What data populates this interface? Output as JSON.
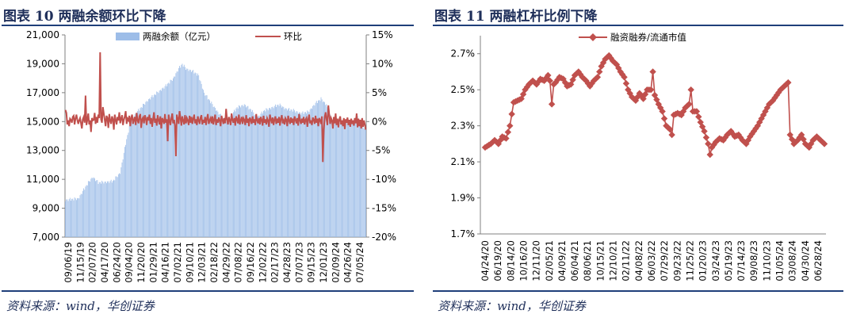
{
  "left": {
    "title": "图表 10  两融余额环比下降",
    "source": "资料来源：wind，华创证券",
    "legend": {
      "bar": "两融余额（亿元）",
      "line": "环比"
    },
    "colors": {
      "bar": "#9dbde8",
      "line": "#c0504d"
    },
    "chart_data": {
      "type": "bar+line",
      "y_left": {
        "min": 7000,
        "max": 21000,
        "ticks": [
          "7,000",
          "9,000",
          "11,000",
          "13,000",
          "15,000",
          "17,000",
          "19,000",
          "21,000"
        ]
      },
      "y_right": {
        "min": -20,
        "max": 15,
        "ticks": [
          "-20%",
          "-15%",
          "-10%",
          "-5%",
          "0%",
          "5%",
          "10%",
          "15%"
        ]
      },
      "x_labels": [
        "09/06/19",
        "11/15/19",
        "02/07/20",
        "04/17/20",
        "06/24/20",
        "09/04/20",
        "11/20/20",
        "01/29/21",
        "04/16/21",
        "07/02/21",
        "09/10/21",
        "12/03/21",
        "02/18/22",
        "04/29/22",
        "07/08/22",
        "09/16/22",
        "12/02/22",
        "02/17/23",
        "04/28/23",
        "07/07/23",
        "09/15/23",
        "12/01/23",
        "02/09/24",
        "04/26/24",
        "07/05/24"
      ],
      "balance_anchors": [
        [
          0,
          9600
        ],
        [
          14,
          9700
        ],
        [
          17,
          10000
        ],
        [
          25,
          10800
        ],
        [
          30,
          11200
        ],
        [
          36,
          10800
        ],
        [
          52,
          10900
        ],
        [
          60,
          11500
        ],
        [
          66,
          13500
        ],
        [
          72,
          15200
        ],
        [
          80,
          15800
        ],
        [
          90,
          16500
        ],
        [
          100,
          17000
        ],
        [
          110,
          17500
        ],
        [
          118,
          18000
        ],
        [
          124,
          18700
        ],
        [
          128,
          19000
        ],
        [
          132,
          18700
        ],
        [
          140,
          18500
        ],
        [
          146,
          18200
        ],
        [
          152,
          17000
        ],
        [
          160,
          16300
        ],
        [
          168,
          15600
        ],
        [
          176,
          15000
        ],
        [
          180,
          15300
        ],
        [
          188,
          16000
        ],
        [
          196,
          16200
        ],
        [
          204,
          15800
        ],
        [
          210,
          15300
        ],
        [
          218,
          15800
        ],
        [
          226,
          16000
        ],
        [
          234,
          16200
        ],
        [
          242,
          15900
        ],
        [
          250,
          15800
        ],
        [
          258,
          15600
        ],
        [
          266,
          15700
        ],
        [
          274,
          16300
        ],
        [
          280,
          16600
        ],
        [
          286,
          16200
        ],
        [
          292,
          15000
        ],
        [
          300,
          14900
        ],
        [
          308,
          15000
        ],
        [
          314,
          14900
        ],
        [
          320,
          15300
        ],
        [
          325,
          14600
        ]
      ],
      "change_pct": [
        2,
        1.5,
        -0.5,
        0.2,
        -0.8,
        0.5,
        0.3,
        -0.2,
        0.8,
        1,
        -0.5,
        0.5,
        1.2,
        0.3,
        -0.4,
        0.2,
        0.6,
        -0.3,
        -1.2,
        0.4,
        0.8,
        -0.2,
        4.5,
        -0.6,
        0.3,
        1.4,
        -0.5,
        0.2,
        -1.8,
        0.6,
        0.2,
        0.3,
        1.5,
        -0.4,
        0.8,
        -0.2,
        1.2,
        0.6,
        12,
        0.4,
        -0.2,
        2.5,
        1.4,
        0.3,
        -0.8,
        1,
        0.6,
        -1.1,
        1.3,
        0.2,
        -0.4,
        0.9,
        0.4,
        -1.4,
        1.2,
        0.3,
        -0.5,
        0.8,
        0.2,
        1.6,
        -0.3,
        0.5,
        1.1,
        -0.6,
        0.3,
        0.9,
        1.8,
        -0.4,
        0.5,
        0.2,
        1,
        -0.8,
        0.6,
        1.2,
        -0.4,
        0.3,
        0.8,
        -0.6,
        1.5,
        0.2,
        -0.3,
        0.9,
        1.3,
        -1.1,
        0.4,
        0.7,
        -0.3,
        1.1,
        0.5,
        -0.6,
        0.8,
        0.2,
        1.2,
        -0.4,
        0.6,
        -0.9,
        0.4,
        1.6,
        -0.2,
        0.5,
        -0.7,
        1.1,
        0.3,
        -0.5,
        0.9,
        -1.2,
        0.6,
        0.2,
        -0.4,
        1.3,
        -0.2,
        0.4,
        -3.4,
        1.2,
        0.2,
        -0.6,
        0.5,
        1.4,
        -0.3,
        0.3,
        -0.8,
        -6,
        1.2,
        0.5,
        -0.4,
        1.8,
        0.6,
        -0.7,
        0.9,
        0.2,
        -0.5,
        1.1,
        -0.3,
        0.6,
        0.2,
        -0.6,
        1,
        -0.2,
        0.8,
        -0.4,
        0.5,
        1.2,
        -0.3,
        0.4,
        -0.6,
        0.9,
        0.2,
        -0.4,
        0.7,
        1.1,
        -0.5,
        0.3,
        -0.2,
        0.8,
        -0.6,
        0.5,
        1.3,
        -0.4,
        0.2,
        0.6,
        -0.3,
        0.9,
        -0.5,
        0.3,
        1.2,
        -0.6,
        0.4,
        -0.2,
        0.7,
        0.2,
        -0.8,
        1,
        0.3,
        -0.4,
        0.6,
        -0.3,
        2.2,
        0.4,
        -0.5,
        0.8,
        0.2,
        -0.6,
        1.4,
        0.3,
        -0.2,
        0.6,
        -0.7,
        0.9,
        0.4,
        -0.3,
        1.2,
        -0.5,
        0.2,
        0.8,
        -0.4,
        0.6,
        0.3,
        -0.6,
        1.1,
        -0.2,
        0.5,
        -0.8,
        0.7,
        0.3,
        -0.4,
        0.9,
        -0.2,
        0.4,
        -0.6,
        1.3,
        0.2,
        -0.3,
        0.6,
        -0.5,
        0.8,
        0.3,
        -0.7,
        1,
        -0.2,
        0.4,
        -0.5,
        0.6,
        0.2,
        -0.9,
        1.2,
        0.4,
        -0.3,
        0.7,
        -0.6,
        0.3,
        0.9,
        -0.4,
        0.5,
        -0.2,
        0.8,
        -0.7,
        0.4,
        1.1,
        -0.3,
        0.2,
        -0.5,
        0.6,
        0.3,
        -0.8,
        1,
        0.2,
        -0.4,
        0.7,
        -0.2,
        0.5,
        -0.6,
        0.9,
        0.3,
        -0.3,
        0.6,
        -0.7,
        1.3,
        0.2,
        -0.4,
        0.5,
        -0.2,
        0.8,
        -0.5,
        0.3,
        0.6,
        -0.9,
        0.4,
        1.2,
        -0.3,
        0.2,
        -0.6,
        0.7,
        0.3,
        -0.4,
        1,
        -0.2,
        0.5,
        -0.8,
        0.6,
        0.2,
        -0.4,
        0.9,
        -7,
        -1.5,
        0.8,
        1.6,
        0.4,
        -0.6,
        2.8,
        1.2,
        -0.4,
        0.6,
        0.2,
        -1.2,
        0.8,
        -0.3,
        1.4,
        -0.6,
        0.5,
        -1,
        0.3,
        0.9,
        -0.5,
        0.2,
        -0.8,
        0.6,
        -1.3,
        0.4,
        -0.2,
        0.7,
        -0.6,
        0.3,
        -0.9,
        0.5,
        -0.4,
        0.2,
        -0.7,
        0.6,
        -0.3,
        1.4,
        -1,
        0.5,
        -0.8,
        0.3,
        -1.2,
        0.6,
        -0.9,
        0.2,
        -0.5,
        -1.4
      ]
    }
  },
  "right": {
    "title": "图表 11  两融杠杆比例下降",
    "source": "资料来源：wind，华创证券",
    "legend": {
      "line": "融资融券/流通市值"
    },
    "colors": {
      "line": "#c0504d"
    },
    "chart_data": {
      "type": "line",
      "y": {
        "min": 1.7,
        "max": 2.8,
        "ticks": [
          "1.7%",
          "1.9%",
          "2.1%",
          "2.3%",
          "2.5%",
          "2.7%"
        ]
      },
      "x_labels": [
        "04/24/20",
        "06/19/20",
        "08/14/20",
        "10/16/20",
        "12/11/20",
        "02/05/21",
        "04/09/21",
        "06/04/21",
        "08/06/21",
        "10/15/21",
        "12/10/21",
        "02/11/22",
        "04/08/22",
        "06/03/22",
        "07/29/22",
        "09/23/22",
        "11/25/22",
        "01/20/23",
        "03/24/23",
        "05/19/23",
        "07/14/23",
        "09/08/23",
        "11/10/23",
        "01/05/24",
        "03/08/24",
        "04/30/24",
        "06/28/24"
      ],
      "ratio_anchors": [
        [
          0,
          2.18
        ],
        [
          3,
          2.2
        ],
        [
          5,
          2.22
        ],
        [
          7,
          2.2
        ],
        [
          9,
          2.24
        ],
        [
          11,
          2.23
        ],
        [
          13,
          2.3
        ],
        [
          15,
          2.43
        ],
        [
          17,
          2.44
        ],
        [
          19,
          2.45
        ],
        [
          21,
          2.5
        ],
        [
          23,
          2.53
        ],
        [
          25,
          2.55
        ],
        [
          27,
          2.53
        ],
        [
          29,
          2.56
        ],
        [
          31,
          2.55
        ],
        [
          33,
          2.58
        ],
        [
          35,
          2.52
        ],
        [
          37,
          2.54
        ],
        [
          39,
          2.57
        ],
        [
          41,
          2.56
        ],
        [
          43,
          2.52
        ],
        [
          45,
          2.53
        ],
        [
          47,
          2.58
        ],
        [
          49,
          2.6
        ],
        [
          51,
          2.57
        ],
        [
          53,
          2.55
        ],
        [
          55,
          2.52
        ],
        [
          57,
          2.55
        ],
        [
          59,
          2.57
        ],
        [
          61,
          2.63
        ],
        [
          63,
          2.67
        ],
        [
          65,
          2.69
        ],
        [
          67,
          2.66
        ],
        [
          69,
          2.64
        ],
        [
          71,
          2.6
        ],
        [
          73,
          2.57
        ],
        [
          75,
          2.5
        ],
        [
          77,
          2.46
        ],
        [
          79,
          2.44
        ],
        [
          81,
          2.48
        ],
        [
          83,
          2.45
        ],
        [
          85,
          2.5
        ],
        [
          87,
          2.5
        ],
        [
          89,
          2.47
        ],
        [
          91,
          2.42
        ],
        [
          93,
          2.38
        ],
        [
          95,
          2.3
        ],
        [
          97,
          2.28
        ],
        [
          99,
          2.36
        ],
        [
          101,
          2.37
        ],
        [
          103,
          2.36
        ],
        [
          105,
          2.4
        ],
        [
          107,
          2.42
        ],
        [
          109,
          2.38
        ],
        [
          111,
          2.38
        ],
        [
          113,
          2.32
        ],
        [
          115,
          2.27
        ],
        [
          117,
          2.2
        ],
        [
          119,
          2.18
        ],
        [
          121,
          2.21
        ],
        [
          123,
          2.23
        ],
        [
          125,
          2.22
        ],
        [
          127,
          2.25
        ],
        [
          129,
          2.27
        ],
        [
          131,
          2.24
        ],
        [
          133,
          2.25
        ],
        [
          135,
          2.22
        ],
        [
          137,
          2.2
        ],
        [
          139,
          2.24
        ],
        [
          141,
          2.27
        ],
        [
          143,
          2.3
        ],
        [
          145,
          2.34
        ],
        [
          147,
          2.38
        ],
        [
          149,
          2.42
        ],
        [
          151,
          2.44
        ],
        [
          153,
          2.47
        ],
        [
          155,
          2.5
        ],
        [
          157,
          2.52
        ],
        [
          159,
          2.54
        ],
        [
          160,
          2.25
        ],
        [
          162,
          2.2
        ],
        [
          164,
          2.22
        ],
        [
          166,
          2.25
        ],
        [
          168,
          2.2
        ],
        [
          170,
          2.18
        ],
        [
          172,
          2.22
        ],
        [
          174,
          2.24
        ],
        [
          176,
          2.22
        ],
        [
          178,
          2.2
        ]
      ],
      "spikes": [
        [
          35,
          2.42
        ],
        [
          88,
          2.6
        ],
        [
          98,
          2.25
        ],
        [
          108,
          2.5
        ],
        [
          118,
          2.14
        ]
      ]
    }
  }
}
